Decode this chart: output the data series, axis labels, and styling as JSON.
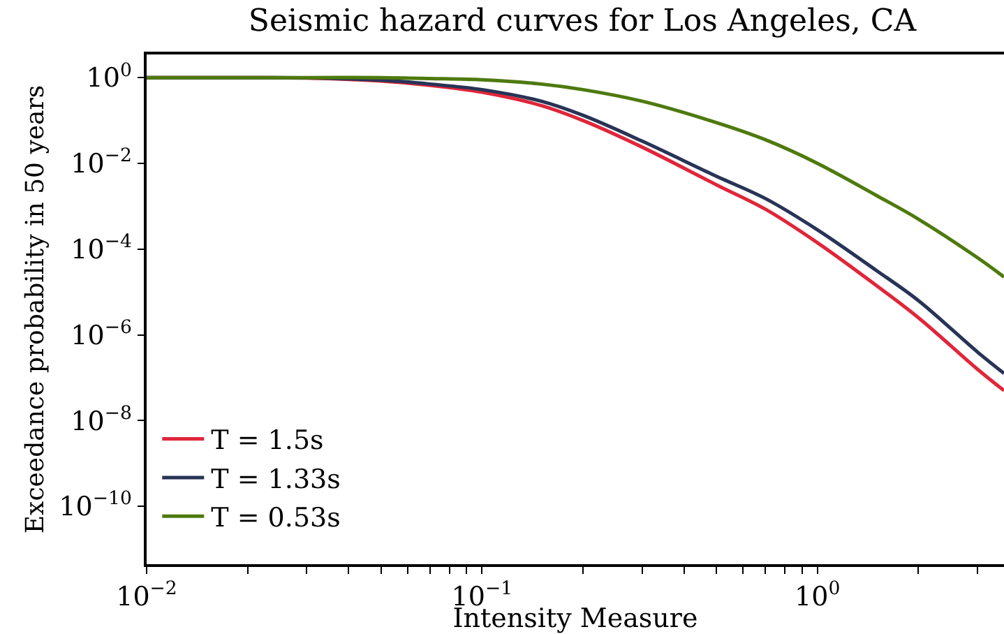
{
  "chart_data": {
    "type": "line",
    "title": "Seismic hazard curves for Los Angeles, CA",
    "xlabel": "Intensity Measure",
    "ylabel": "Exceedance probability in 50 years",
    "log": "xy",
    "legend": "bottom left",
    "marker": "none",
    "line_style": "solid",
    "x": [
      0.01,
      0.02,
      0.03,
      0.05,
      0.07,
      0.1,
      0.15,
      0.2,
      0.3,
      0.5,
      0.7,
      1.0,
      1.5,
      2,
      3,
      3.6
    ],
    "series": [
      {
        "name": "T = 1.5s",
        "color": "#e0263a",
        "values": [
          1,
          1,
          0.977,
          0.832,
          0.661,
          0.457,
          0.224,
          0.1,
          0.024,
          0.00316,
          0.000851,
          0.000141,
          1.41e-05,
          2.51e-06,
          1.58e-07,
          5.01e-08
        ]
      },
      {
        "name": "T = 1.33s",
        "color": "#283456",
        "values": [
          1,
          1,
          0.989,
          0.871,
          0.708,
          0.525,
          0.282,
          0.132,
          0.0331,
          0.00501,
          0.00151,
          0.000282,
          3.16e-05,
          6.31e-06,
          3.98e-07,
          1.26e-07
        ]
      },
      {
        "name": "T = 0.53s",
        "color": "#4e7a0e",
        "values": [
          1,
          1,
          1,
          1,
          0.955,
          0.891,
          0.708,
          0.525,
          0.282,
          0.0891,
          0.0355,
          0.01,
          0.00178,
          0.000501,
          6.31e-05,
          2.24e-05
        ]
      }
    ],
    "xlim": [
      0.01,
      3.6
    ],
    "xticks": [
      {
        "value": 0.01,
        "label": "10$^{−2}$"
      },
      {
        "value": 0.02,
        "label": null
      },
      {
        "value": 0.03,
        "label": null
      },
      {
        "value": 0.04,
        "label": null
      },
      {
        "value": 0.05,
        "label": null
      },
      {
        "value": 0.06,
        "label": null
      },
      {
        "value": 0.07,
        "label": null
      },
      {
        "value": 0.08,
        "label": null
      },
      {
        "value": 0.09,
        "label": null
      },
      {
        "value": 0.1,
        "label": "10$^{−1}$"
      },
      {
        "value": 0.2,
        "label": null
      },
      {
        "value": 0.3,
        "label": null
      },
      {
        "value": 0.4,
        "label": null
      },
      {
        "value": 0.5,
        "label": null
      },
      {
        "value": 0.6,
        "label": null
      },
      {
        "value": 0.7,
        "label": null
      },
      {
        "value": 0.8,
        "label": null
      },
      {
        "value": 0.9,
        "label": null
      },
      {
        "value": 1,
        "label": "10$^{0}$"
      },
      {
        "value": 2,
        "label": null
      },
      {
        "value": 3,
        "label": null
      }
    ],
    "ylim": [
      4.47e-12,
      3.47
    ],
    "yticks": [
      {
        "value": 1,
        "label": "10$^{0}$"
      },
      {
        "value": 0.01,
        "label": "10$^{−2}$"
      },
      {
        "value": 0.0001,
        "label": "10$^{−4}$"
      },
      {
        "value": 1e-06,
        "label": "10$^{−6}$"
      },
      {
        "value": 1e-08,
        "label": "10$^{−8}$"
      },
      {
        "value": 1e-10,
        "label": "10$^{−10}$"
      }
    ]
  }
}
